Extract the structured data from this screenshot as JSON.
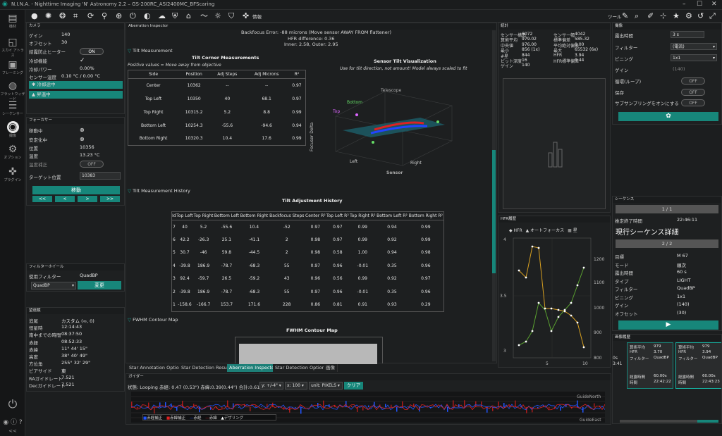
{
  "app": {
    "title": "N.I.N.A. - Nighttime Imaging 'N' Astronomy 2.2",
    "profile": "GS-200RC_ASI2400MC_BFScaring"
  },
  "toolbar": {
    "tools_label": "ツール",
    "info_label": "情報"
  },
  "nav": {
    "items": [
      "機材",
      "スカイ アトラス",
      "フレーミング",
      "フラットウィザード",
      "シーケンサー",
      "撮像",
      "オプション",
      "プラグイン"
    ]
  },
  "camera": {
    "header": "カメラ",
    "rows": [
      {
        "k": "ゲイン",
        "v": "140"
      },
      {
        "k": "オフセット",
        "v": "30"
      },
      {
        "k": "結露防止ヒーター",
        "v": "ON"
      },
      {
        "k": "冷却機能",
        "v": "✓"
      },
      {
        "k": "冷却パワー",
        "v": "0.00%"
      },
      {
        "k": "センサー温度",
        "v": "0.10 °C / 0.00 °C"
      }
    ],
    "cooling": "冷却途中",
    "warming": "昇温中"
  },
  "focuser": {
    "header": "フォーカサー",
    "rows": [
      {
        "k": "移動中",
        "v": "⊗"
      },
      {
        "k": "安定化中",
        "v": "⊗"
      },
      {
        "k": "位置",
        "v": "10356"
      },
      {
        "k": "温度",
        "v": "13.23 °C"
      },
      {
        "k": "温度補正",
        "v": "OFF"
      }
    ],
    "target_label": "ターゲット位置",
    "target_value": "10383",
    "move_label": "移動",
    "steps": [
      "<<",
      "<",
      ">",
      ">>"
    ]
  },
  "filterwheel": {
    "header": "フィルターホイール",
    "in_use_label": "使用フィルター",
    "in_use": "QuadBP",
    "select": "QuadBP",
    "change_label": "変更"
  },
  "telescope": {
    "header": "望遠鏡",
    "rows": [
      {
        "k": "追尾",
        "v": "カスタム (∞, 0)"
      },
      {
        "k": "恒星時",
        "v": "12:14:43"
      },
      {
        "k": "南中までの時間",
        "v": "08:37:50"
      },
      {
        "k": "赤経",
        "v": "08:52:33"
      },
      {
        "k": "赤緯",
        "v": "11° 44' 15\""
      },
      {
        "k": "高度",
        "v": "38° 40' 49\""
      },
      {
        "k": "方位角",
        "v": "255° 32' 29\""
      },
      {
        "k": "ピアサイド",
        "v": "東"
      },
      {
        "k": "RAガイドレート",
        "v": "7.521"
      },
      {
        "k": "Decガイドレート",
        "v": "7.521"
      }
    ]
  },
  "aberration": {
    "header": "Aberration Inspector",
    "backfocus": "Backfocus Error: -88 microns (Move sensor AWAY FROM flattener)",
    "hfr_diff": "HFR difference: 0.36",
    "inner_outer": "Inner: 2.58, Outer: 2.95",
    "tilt_section": "Tilt Measurement",
    "corner_title": "Tilt Corner Measurements",
    "positive_note": "Positive values = Move away from objective",
    "corner_headers": [
      "Side",
      "Position",
      "Adj Steps",
      "Adj Microns",
      "R²"
    ],
    "corner_rows": [
      [
        "Center",
        "10362",
        "--",
        "--",
        "0.97"
      ],
      [
        "Top Left",
        "10350",
        "40",
        "68.1",
        "0.97"
      ],
      [
        "Top Right",
        "10315.2",
        "5.2",
        "8.8",
        "0.99"
      ],
      [
        "Bottom Left",
        "10254.3",
        "-55.6",
        "-94.6",
        "0.94"
      ],
      [
        "Bottom Right",
        "10320.3",
        "10.4",
        "17.6",
        "0.99"
      ]
    ],
    "viz_title": "Sensor Tilt Visualization",
    "viz_note": "Use for tilt direction, not amount! Model always scaled to fit",
    "viz_telescope": "Telescope",
    "viz_top": "Top",
    "viz_bottom": "Bottom",
    "viz_left": "Left",
    "viz_right": "Right",
    "viz_sensor": "Sensor",
    "viz_axis": "Focuser Delta",
    "history_section": "Tilt Measurement History",
    "history_title": "Tilt Adjustment History",
    "history_headers": [
      "Id",
      "Top Left",
      "Top Right",
      "Bottom Left",
      "Bottom Right",
      "Backfocus Steps",
      "Center R²",
      "Top Left R²",
      "Top Right R²",
      "Bottom Left R²",
      "Bottom Right R²"
    ],
    "history_rows": [
      [
        "7",
        "40",
        "5.2",
        "-55.6",
        "10.4",
        "-52",
        "0.97",
        "0.97",
        "0.99",
        "0.94",
        "0.99"
      ],
      [
        "6",
        "42.2",
        "-26.3",
        "25.1",
        "-41.1",
        "2",
        "0.98",
        "0.97",
        "0.99",
        "0.92",
        "0.99"
      ],
      [
        "5",
        "30.7",
        "-46",
        "59.8",
        "-44.5",
        "2",
        "0.98",
        "0.58",
        "1.00",
        "0.94",
        "0.98"
      ],
      [
        "4",
        "-39.8",
        "186.9",
        "-78.7",
        "-68.3",
        "55",
        "0.97",
        "0.96",
        "-0.01",
        "0.35",
        "0.96"
      ],
      [
        "3",
        "92.4",
        "-59.7",
        "26.5",
        "-59.2",
        "43",
        "0.96",
        "0.56",
        "0.99",
        "0.92",
        "0.97"
      ],
      [
        "2",
        "-39.8",
        "186.9",
        "-78.7",
        "-68.3",
        "55",
        "0.97",
        "0.96",
        "-0.01",
        "0.35",
        "0.96"
      ],
      [
        "1",
        "-158.6",
        "-166.7",
        "153.7",
        "171.6",
        "228",
        "0.86",
        "0.81",
        "0.91",
        "0.93",
        "0.29"
      ]
    ],
    "fwhm_section": "FWHM Contour Map",
    "fwhm_title": "FWHM Contour Map"
  },
  "bottom_tabs": [
    "Star Annotation Options",
    "Star Detection Results",
    "Aberration Inspector",
    "Star Detection Options",
    "画像"
  ],
  "guider": {
    "header": "ガイダー",
    "status": "状態: Looping 赤経: 0.47 (0.53\") 赤緯:0.39(0.44\") 合計:0.61(0.69\")",
    "y_select": "y: +/-4\"",
    "x_select": "x: 100",
    "unit_select": "unit: PIXELS",
    "clear_label": "クリア",
    "north": "GuideNorth",
    "east": "GuideEast",
    "legend": [
      "赤経補正",
      "赤緯補正",
      "赤経",
      "赤緯",
      "デザリング"
    ]
  },
  "stats": {
    "header": "統計",
    "left": [
      {
        "k": "センサー構造",
        "v": "6072"
      },
      {
        "k": "算術平均",
        "v": "979.02"
      },
      {
        "k": "中央値",
        "v": "976.00"
      },
      {
        "k": "最小",
        "v": "856 (1x)"
      },
      {
        "k": "#星",
        "v": "844"
      },
      {
        "k": "ビット深度",
        "v": "16"
      },
      {
        "k": "ゲイン",
        "v": "140"
      }
    ],
    "right": [
      {
        "k": "センサー幅",
        "v": "4042"
      },
      {
        "k": "標準偏差",
        "v": "585.32"
      },
      {
        "k": "平均絶対偏差",
        "v": "0.00"
      },
      {
        "k": "最大",
        "v": "65532 (6x)"
      },
      {
        "k": "HFR",
        "v": "3.94"
      },
      {
        "k": "HFR標準偏差",
        "v": "0.44"
      }
    ]
  },
  "hfr": {
    "header": "HFR履歴",
    "legend": [
      "HFR",
      "オートフォーカス",
      "星"
    ],
    "yleft": [
      "4",
      "3.5",
      "3"
    ],
    "yright": [
      "1200",
      "1100",
      "1000",
      "900",
      "800"
    ],
    "x": [
      "5",
      "10"
    ]
  },
  "imaging": {
    "header": "撮像",
    "rows": [
      {
        "k": "露出時間",
        "v": "3 s"
      },
      {
        "k": "フィルター",
        "v": "(電流)"
      },
      {
        "k": "ビニング",
        "v": "1x1"
      },
      {
        "k": "ゲイン",
        "v": "(140)"
      },
      {
        "k": "循環(ループ)",
        "v": "OFF"
      },
      {
        "k": "保存",
        "v": "OFF"
      },
      {
        "k": "サブサンプリングをオンにする",
        "v": "OFF"
      }
    ]
  },
  "sequence": {
    "header": "シーケンス",
    "progress1": "1 / 1",
    "eta_label": "推定終了時間",
    "eta": "22:46:11",
    "detail_title": "現行シーケンス詳細",
    "progress2": "2 / 2",
    "rows": [
      {
        "k": "目標",
        "v": "M 67"
      },
      {
        "k": "モード",
        "v": "順次"
      },
      {
        "k": "露出時間",
        "v": "60 s"
      },
      {
        "k": "タイプ",
        "v": "LIGHT"
      },
      {
        "k": "フィルター",
        "v": "QuadBP"
      },
      {
        "k": "ビニング",
        "v": "1x1"
      },
      {
        "k": "ゲイン",
        "v": "(140)"
      },
      {
        "k": "オフセット",
        "v": "(30)"
      }
    ]
  },
  "history": {
    "header": "画像履歴",
    "cards": [
      {
        "mean": "979",
        "hfr": "3.70",
        "filter": "QuadBP",
        "exp": "60.00s",
        "time": "22:42:22"
      },
      {
        "mean": "979",
        "hfr": "3.94",
        "filter": "QuadBP",
        "exp": "60.00s",
        "time": "22:43:23"
      }
    ],
    "labels": {
      "mean": "算術平均",
      "hfr": "HFR",
      "filter": "フィルター",
      "exp": "総露時間",
      "time": "時間"
    },
    "partial": [
      "0s",
      "3:41"
    ]
  },
  "colors": {
    "accent": "#17867a",
    "ra": "#2255ff",
    "dec": "#dd2222"
  }
}
